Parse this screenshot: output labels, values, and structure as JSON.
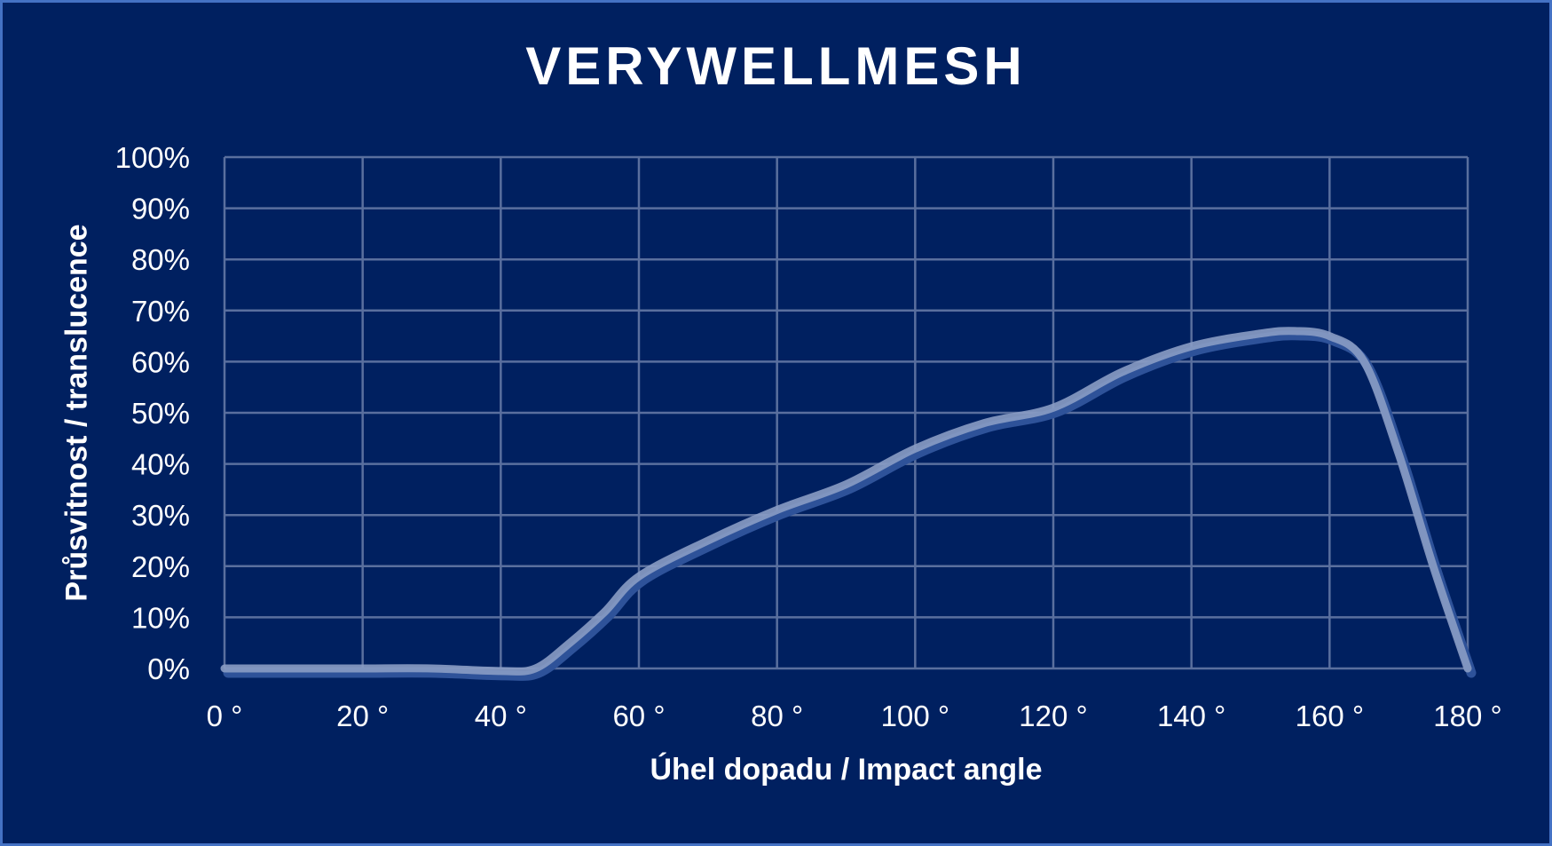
{
  "chart_data": {
    "type": "line",
    "title": "VERYWELLMESH",
    "xlabel": "Úhel dopadu / Impact angle",
    "ylabel": "Průsvitnost  / translucence",
    "xlim": [
      0,
      180
    ],
    "ylim": [
      0,
      100
    ],
    "x_ticks": [
      "0 °",
      "20 °",
      "40 °",
      "60 °",
      "80 °",
      "100 °",
      "120 °",
      "140 °",
      "160 °",
      "180 °"
    ],
    "y_ticks": [
      "0%",
      "10%",
      "20%",
      "30%",
      "40%",
      "50%",
      "60%",
      "70%",
      "80%",
      "90%",
      "100%"
    ],
    "grid": true,
    "legend": null,
    "series": [
      {
        "name": "VERYWELLMESH",
        "x": [
          0,
          10,
          20,
          30,
          40,
          45,
          50,
          55,
          60,
          70,
          80,
          90,
          100,
          110,
          120,
          130,
          140,
          150,
          155,
          160,
          165,
          170,
          175,
          180
        ],
        "values": [
          0,
          0,
          0,
          0,
          -0.5,
          0,
          5,
          11,
          18,
          25,
          31,
          36,
          43,
          48,
          51,
          58,
          63,
          65.5,
          66,
          65,
          60,
          42,
          20,
          0
        ]
      }
    ]
  },
  "colors": {
    "background": "#002060",
    "border": "#4472C4",
    "gridline": "#5A6F9E",
    "line_light": "#8A9CC4",
    "line_shadow": "#2E5299",
    "text": "#FFFFFF"
  }
}
